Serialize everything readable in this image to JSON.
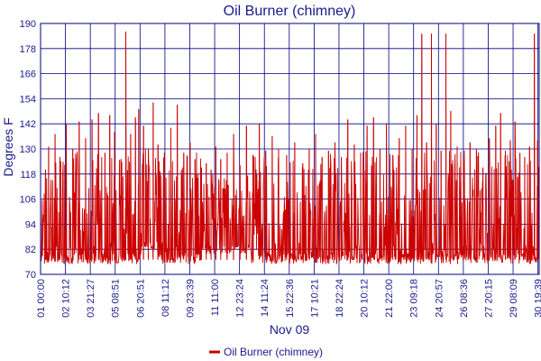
{
  "chart_data": {
    "type": "line",
    "title": "Oil Burner (chimney)",
    "xlabel": "Nov 09",
    "ylabel": "Degrees F",
    "ylim": [
      70,
      190
    ],
    "yticks": [
      70,
      82,
      94,
      106,
      118,
      130,
      142,
      154,
      166,
      178,
      190
    ],
    "xticks": [
      "01 00:00",
      "02 10:12",
      "03 21:27",
      "05 08:51",
      "06 20:51",
      "08 11:12",
      "09 23:39",
      "11 11:00",
      "12 23:24",
      "14 11:24",
      "15 22:36",
      "17 10:21",
      "18 22:24",
      "20 10:12",
      "21 22:00",
      "23 09:18",
      "24 20:57",
      "26 08:36",
      "27 20:15",
      "29 08:09",
      "30 19:39"
    ],
    "grid": true,
    "legend_position": "bottom-center",
    "series": [
      {
        "name": "Oil Burner (chimney)",
        "color": "#cc0000",
        "baseline": 77,
        "peaks": [
          {
            "x": 0.3,
            "y": 120
          },
          {
            "x": 0.5,
            "y": 131
          },
          {
            "x": 0.9,
            "y": 137
          },
          {
            "x": 1.2,
            "y": 126
          },
          {
            "x": 1.6,
            "y": 142
          },
          {
            "x": 2.0,
            "y": 130
          },
          {
            "x": 2.4,
            "y": 143
          },
          {
            "x": 2.8,
            "y": 135
          },
          {
            "x": 3.2,
            "y": 144
          },
          {
            "x": 3.6,
            "y": 147
          },
          {
            "x": 4.0,
            "y": 128
          },
          {
            "x": 4.3,
            "y": 146
          },
          {
            "x": 4.6,
            "y": 138
          },
          {
            "x": 5.0,
            "y": 125
          },
          {
            "x": 5.3,
            "y": 186
          },
          {
            "x": 5.6,
            "y": 137
          },
          {
            "x": 5.9,
            "y": 145
          },
          {
            "x": 6.1,
            "y": 149
          },
          {
            "x": 6.4,
            "y": 141
          },
          {
            "x": 6.7,
            "y": 130
          },
          {
            "x": 7.0,
            "y": 152
          },
          {
            "x": 7.3,
            "y": 132
          },
          {
            "x": 7.7,
            "y": 128
          },
          {
            "x": 8.1,
            "y": 140
          },
          {
            "x": 8.5,
            "y": 151
          },
          {
            "x": 8.9,
            "y": 128
          },
          {
            "x": 9.3,
            "y": 133
          },
          {
            "x": 9.6,
            "y": 125
          },
          {
            "x": 10.0,
            "y": 121
          },
          {
            "x": 10.3,
            "y": 123
          },
          {
            "x": 10.6,
            "y": 120
          },
          {
            "x": 10.9,
            "y": 131
          },
          {
            "x": 11.2,
            "y": 125
          },
          {
            "x": 11.6,
            "y": 128
          },
          {
            "x": 12.0,
            "y": 137
          },
          {
            "x": 12.4,
            "y": 122
          },
          {
            "x": 12.8,
            "y": 141
          },
          {
            "x": 13.2,
            "y": 127
          },
          {
            "x": 13.6,
            "y": 142
          },
          {
            "x": 14.0,
            "y": 129
          },
          {
            "x": 14.4,
            "y": 136
          },
          {
            "x": 14.8,
            "y": 130
          },
          {
            "x": 15.3,
            "y": 127
          },
          {
            "x": 15.8,
            "y": 133
          },
          {
            "x": 16.3,
            "y": 123
          },
          {
            "x": 16.7,
            "y": 130
          },
          {
            "x": 17.1,
            "y": 137
          },
          {
            "x": 17.5,
            "y": 126
          },
          {
            "x": 17.9,
            "y": 129
          },
          {
            "x": 18.3,
            "y": 133
          },
          {
            "x": 18.7,
            "y": 126
          },
          {
            "x": 19.1,
            "y": 144
          },
          {
            "x": 19.5,
            "y": 132
          },
          {
            "x": 19.9,
            "y": 128
          },
          {
            "x": 20.3,
            "y": 141
          },
          {
            "x": 20.7,
            "y": 145
          },
          {
            "x": 21.1,
            "y": 130
          },
          {
            "x": 21.5,
            "y": 142
          },
          {
            "x": 21.9,
            "y": 127
          },
          {
            "x": 22.3,
            "y": 135
          },
          {
            "x": 22.7,
            "y": 141
          },
          {
            "x": 23.1,
            "y": 130
          },
          {
            "x": 23.4,
            "y": 146
          },
          {
            "x": 23.7,
            "y": 185
          },
          {
            "x": 24.0,
            "y": 133
          },
          {
            "x": 24.3,
            "y": 185
          },
          {
            "x": 24.6,
            "y": 142
          },
          {
            "x": 24.9,
            "y": 129
          },
          {
            "x": 25.2,
            "y": 185
          },
          {
            "x": 25.5,
            "y": 148
          },
          {
            "x": 25.9,
            "y": 131
          },
          {
            "x": 26.3,
            "y": 125
          },
          {
            "x": 26.7,
            "y": 133
          },
          {
            "x": 27.1,
            "y": 130
          },
          {
            "x": 27.5,
            "y": 121
          },
          {
            "x": 27.9,
            "y": 135
          },
          {
            "x": 28.3,
            "y": 141
          },
          {
            "x": 28.6,
            "y": 147
          },
          {
            "x": 28.9,
            "y": 129
          },
          {
            "x": 29.2,
            "y": 134
          },
          {
            "x": 29.5,
            "y": 143
          },
          {
            "x": 29.8,
            "y": 128
          },
          {
            "x": 30.1,
            "y": 126
          },
          {
            "x": 30.4,
            "y": 131
          },
          {
            "x": 30.7,
            "y": 185
          },
          {
            "x": 30.9,
            "y": 134
          }
        ],
        "dense_bands": [
          {
            "from": 10.0,
            "to": 13.1,
            "floor": 80,
            "ceil": 118
          },
          {
            "from": 6.3,
            "to": 7.3,
            "floor": 82,
            "ceil": 132
          }
        ]
      }
    ]
  }
}
